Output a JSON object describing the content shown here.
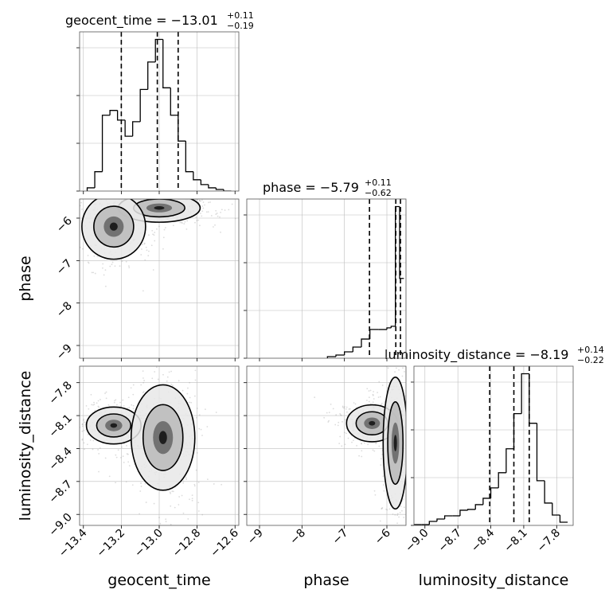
{
  "panel_titles": {
    "geocent_time": {
      "lead": "geocent_time = −13.01",
      "upper": "+0.11",
      "lower": "−0.19"
    },
    "phase": {
      "lead": "phase = −5.79",
      "upper": "+0.11",
      "lower": "−0.62"
    },
    "luminosity_distance": {
      "lead": "luminosity_distance = −8.19",
      "upper": "+0.14",
      "lower": "−0.22"
    }
  },
  "chart_data": {
    "type": "corner",
    "grid": true,
    "parameters": [
      {
        "key": "geocent_time",
        "label": "geocent_time",
        "range": [
          -13.42,
          -12.58
        ],
        "ticks": [
          -13.4,
          -13.2,
          -13.0,
          -12.8,
          -12.6
        ],
        "tick_labels": [
          "−13.4",
          "−13.2",
          "−13.0",
          "−12.8",
          "−12.6"
        ],
        "median": -13.01,
        "quantiles": [
          -13.2,
          -13.01,
          -12.9
        ],
        "hist_edges": [
          -13.38,
          -13.34,
          -13.3,
          -13.26,
          -13.22,
          -13.18,
          -13.14,
          -13.1,
          -13.06,
          -13.02,
          -12.98,
          -12.94,
          -12.9,
          -12.86,
          -12.82,
          -12.78,
          -12.74,
          -12.7,
          -12.66,
          -12.62
        ],
        "hist_counts": [
          2,
          12,
          47,
          50,
          44,
          34,
          43,
          63,
          80,
          94,
          64,
          47,
          31,
          12,
          7,
          4,
          2,
          1,
          0
        ]
      },
      {
        "key": "phase",
        "label": "phase",
        "range": [
          -9.3,
          -5.55
        ],
        "ticks": [
          -9,
          -8,
          -7,
          -6
        ],
        "tick_labels": [
          "−9",
          "−8",
          "−7",
          "−6"
        ],
        "median": -5.79,
        "quantiles": [
          -6.41,
          -5.79,
          -5.68
        ],
        "hist_edges": [
          -7.4,
          -7.2,
          -7.0,
          -6.8,
          -6.6,
          -6.4,
          -6.2,
          -6.0,
          -5.9,
          -5.8,
          -5.7,
          -5.6
        ],
        "hist_counts": [
          1,
          2,
          4,
          7,
          12,
          18,
          18,
          19,
          20,
          95,
          50
        ]
      },
      {
        "key": "luminosity_distance",
        "label": "luminosity_distance",
        "range": [
          -9.1,
          -7.65
        ],
        "ticks": [
          -9.0,
          -8.7,
          -8.4,
          -8.1,
          -7.8
        ],
        "tick_labels": [
          "−9.0",
          "−8.7",
          "−8.4",
          "−8.1",
          "−7.8"
        ],
        "median": -8.19,
        "quantiles": [
          -8.41,
          -8.19,
          -8.05
        ],
        "hist_edges": [
          -9.1,
          -9.03,
          -8.96,
          -8.89,
          -8.82,
          -8.75,
          -8.68,
          -8.61,
          -8.54,
          -8.47,
          -8.4,
          -8.33,
          -8.26,
          -8.19,
          -8.12,
          -8.05,
          -7.98,
          -7.91,
          -7.84,
          -7.77,
          -7.7
        ],
        "hist_counts": [
          1,
          1,
          5,
          8,
          12,
          12,
          19,
          20,
          26,
          34,
          47,
          66,
          96,
          140,
          190,
          128,
          56,
          28,
          13,
          4
        ]
      }
    ],
    "pairs": [
      {
        "x": "geocent_time",
        "y": "phase",
        "modes": [
          {
            "x": -13.0,
            "y": -5.76,
            "sx": 0.09,
            "sy": 0.14,
            "w": 0.65
          },
          {
            "x": -13.24,
            "y": -6.2,
            "sx": 0.07,
            "sy": 0.32,
            "w": 0.35
          }
        ]
      },
      {
        "x": "geocent_time",
        "y": "luminosity_distance",
        "modes": [
          {
            "x": -13.24,
            "y": -8.19,
            "sx": 0.06,
            "sy": 0.07,
            "w": 0.45
          },
          {
            "x": -12.98,
            "y": -8.3,
            "sx": 0.07,
            "sy": 0.2,
            "w": 0.55
          }
        ]
      },
      {
        "x": "phase",
        "y": "luminosity_distance",
        "modes": [
          {
            "x": -6.35,
            "y": -8.17,
            "sx": 0.25,
            "sy": 0.07,
            "w": 0.55
          },
          {
            "x": -5.8,
            "y": -8.35,
            "sx": 0.12,
            "sy": 0.25,
            "w": 0.45
          }
        ]
      }
    ]
  }
}
